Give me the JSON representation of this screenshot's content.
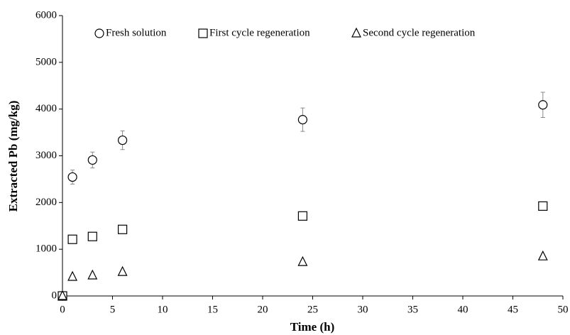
{
  "chart_data": {
    "type": "scatter",
    "xlabel": "Time (h)",
    "ylabel": "Extracted Pb (mg/kg)",
    "x": [
      0,
      1,
      3,
      6,
      24,
      48
    ],
    "series": [
      {
        "name": "Fresh solution",
        "color": "#000000",
        "marker": "circle",
        "values": [
          0,
          2545,
          2910,
          3333,
          3773,
          4090
        ],
        "errors": [
          0,
          150,
          170,
          200,
          250,
          270
        ]
      },
      {
        "name": "First cycle regeneration",
        "color": "#000000",
        "marker": "square",
        "values": [
          0,
          1212,
          1273,
          1424,
          1712,
          1924
        ]
      },
      {
        "name": "Second cycle regeneration",
        "color": "#000000",
        "marker": "triangle",
        "values": [
          0,
          410,
          440,
          515,
          727,
          848
        ]
      }
    ],
    "xlim": [
      0,
      50
    ],
    "xticks": [
      0,
      5,
      10,
      15,
      20,
      25,
      30,
      35,
      40,
      45,
      50
    ],
    "ylim": [
      0,
      6000
    ],
    "yticks": [
      0,
      1000,
      2000,
      3000,
      4000,
      5000,
      6000
    ],
    "grid": false,
    "legend": "top"
  }
}
